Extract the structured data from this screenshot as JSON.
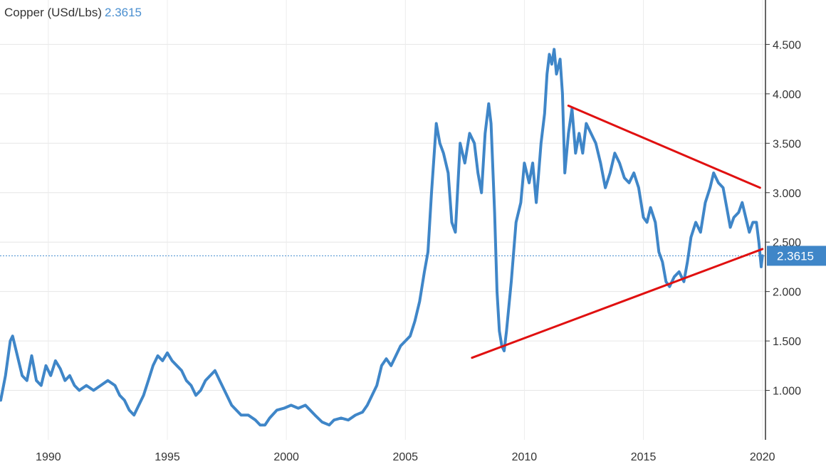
{
  "header": {
    "title": "Copper (USd/Lbs)",
    "last_value": "2.3615"
  },
  "chart_data": {
    "type": "line",
    "title": "Copper (USd/Lbs)",
    "xlabel": "",
    "ylabel": "",
    "x_unit": "year",
    "xlim": [
      1988,
      2020.1
    ],
    "ylim": [
      0.5,
      4.85
    ],
    "x_ticks": [
      "1990",
      "1995",
      "2000",
      "2005",
      "2010",
      "2015",
      "2020"
    ],
    "y_ticks": [
      "1.000",
      "1.500",
      "2.000",
      "2.500",
      "3.000",
      "3.500",
      "4.000",
      "4.500"
    ],
    "grid": true,
    "last_value": 2.3615,
    "last_value_label": "2.3615",
    "colors": {
      "series": "#3f86c8",
      "trendlines": "#e01010",
      "badge": "#3f86c8"
    },
    "series": [
      {
        "points": [
          [
            1988.0,
            0.9
          ],
          [
            1988.2,
            1.15
          ],
          [
            1988.4,
            1.5
          ],
          [
            1988.5,
            1.55
          ],
          [
            1988.7,
            1.35
          ],
          [
            1988.9,
            1.15
          ],
          [
            1989.1,
            1.1
          ],
          [
            1989.3,
            1.35
          ],
          [
            1989.5,
            1.1
          ],
          [
            1989.7,
            1.05
          ],
          [
            1989.9,
            1.25
          ],
          [
            1990.1,
            1.15
          ],
          [
            1990.3,
            1.3
          ],
          [
            1990.5,
            1.22
          ],
          [
            1990.7,
            1.1
          ],
          [
            1990.9,
            1.15
          ],
          [
            1991.1,
            1.05
          ],
          [
            1991.3,
            1.0
          ],
          [
            1991.6,
            1.05
          ],
          [
            1991.9,
            1.0
          ],
          [
            1992.2,
            1.05
          ],
          [
            1992.5,
            1.1
          ],
          [
            1992.8,
            1.05
          ],
          [
            1993.0,
            0.95
          ],
          [
            1993.2,
            0.9
          ],
          [
            1993.4,
            0.8
          ],
          [
            1993.6,
            0.75
          ],
          [
            1993.8,
            0.85
          ],
          [
            1994.0,
            0.95
          ],
          [
            1994.2,
            1.1
          ],
          [
            1994.4,
            1.25
          ],
          [
            1994.6,
            1.35
          ],
          [
            1994.8,
            1.3
          ],
          [
            1995.0,
            1.38
          ],
          [
            1995.2,
            1.3
          ],
          [
            1995.4,
            1.25
          ],
          [
            1995.6,
            1.2
          ],
          [
            1995.8,
            1.1
          ],
          [
            1996.0,
            1.05
          ],
          [
            1996.2,
            0.95
          ],
          [
            1996.4,
            1.0
          ],
          [
            1996.6,
            1.1
          ],
          [
            1996.8,
            1.15
          ],
          [
            1997.0,
            1.2
          ],
          [
            1997.2,
            1.1
          ],
          [
            1997.5,
            0.95
          ],
          [
            1997.7,
            0.85
          ],
          [
            1997.9,
            0.8
          ],
          [
            1998.1,
            0.75
          ],
          [
            1998.4,
            0.75
          ],
          [
            1998.7,
            0.7
          ],
          [
            1998.9,
            0.65
          ],
          [
            1999.1,
            0.65
          ],
          [
            1999.3,
            0.72
          ],
          [
            1999.6,
            0.8
          ],
          [
            1999.9,
            0.82
          ],
          [
            2000.2,
            0.85
          ],
          [
            2000.5,
            0.82
          ],
          [
            2000.8,
            0.85
          ],
          [
            2001.0,
            0.8
          ],
          [
            2001.2,
            0.75
          ],
          [
            2001.5,
            0.68
          ],
          [
            2001.8,
            0.65
          ],
          [
            2002.0,
            0.7
          ],
          [
            2002.3,
            0.72
          ],
          [
            2002.6,
            0.7
          ],
          [
            2002.9,
            0.75
          ],
          [
            2003.2,
            0.78
          ],
          [
            2003.4,
            0.85
          ],
          [
            2003.6,
            0.95
          ],
          [
            2003.8,
            1.05
          ],
          [
            2004.0,
            1.25
          ],
          [
            2004.2,
            1.32
          ],
          [
            2004.4,
            1.25
          ],
          [
            2004.6,
            1.35
          ],
          [
            2004.8,
            1.45
          ],
          [
            2005.0,
            1.5
          ],
          [
            2005.2,
            1.55
          ],
          [
            2005.4,
            1.7
          ],
          [
            2005.6,
            1.9
          ],
          [
            2005.8,
            2.2
          ],
          [
            2005.95,
            2.4
          ],
          [
            2006.1,
            3.0
          ],
          [
            2006.3,
            3.7
          ],
          [
            2006.45,
            3.5
          ],
          [
            2006.6,
            3.4
          ],
          [
            2006.8,
            3.2
          ],
          [
            2006.95,
            2.7
          ],
          [
            2007.1,
            2.6
          ],
          [
            2007.3,
            3.5
          ],
          [
            2007.5,
            3.3
          ],
          [
            2007.7,
            3.6
          ],
          [
            2007.9,
            3.5
          ],
          [
            2008.05,
            3.2
          ],
          [
            2008.2,
            3.0
          ],
          [
            2008.35,
            3.6
          ],
          [
            2008.5,
            3.9
          ],
          [
            2008.6,
            3.7
          ],
          [
            2008.75,
            2.8
          ],
          [
            2008.85,
            2.0
          ],
          [
            2008.95,
            1.6
          ],
          [
            2009.05,
            1.45
          ],
          [
            2009.15,
            1.4
          ],
          [
            2009.25,
            1.6
          ],
          [
            2009.45,
            2.1
          ],
          [
            2009.65,
            2.7
          ],
          [
            2009.85,
            2.9
          ],
          [
            2010.0,
            3.3
          ],
          [
            2010.2,
            3.1
          ],
          [
            2010.35,
            3.3
          ],
          [
            2010.5,
            2.9
          ],
          [
            2010.6,
            3.2
          ],
          [
            2010.7,
            3.5
          ],
          [
            2010.85,
            3.8
          ],
          [
            2010.95,
            4.2
          ],
          [
            2011.05,
            4.4
          ],
          [
            2011.15,
            4.3
          ],
          [
            2011.25,
            4.45
          ],
          [
            2011.35,
            4.2
          ],
          [
            2011.5,
            4.35
          ],
          [
            2011.6,
            4.0
          ],
          [
            2011.7,
            3.2
          ],
          [
            2011.85,
            3.6
          ],
          [
            2012.0,
            3.85
          ],
          [
            2012.15,
            3.4
          ],
          [
            2012.3,
            3.6
          ],
          [
            2012.45,
            3.4
          ],
          [
            2012.6,
            3.7
          ],
          [
            2012.8,
            3.6
          ],
          [
            2013.0,
            3.5
          ],
          [
            2013.2,
            3.3
          ],
          [
            2013.4,
            3.05
          ],
          [
            2013.6,
            3.2
          ],
          [
            2013.8,
            3.4
          ],
          [
            2014.0,
            3.3
          ],
          [
            2014.2,
            3.15
          ],
          [
            2014.4,
            3.1
          ],
          [
            2014.6,
            3.2
          ],
          [
            2014.8,
            3.05
          ],
          [
            2015.0,
            2.75
          ],
          [
            2015.15,
            2.7
          ],
          [
            2015.3,
            2.85
          ],
          [
            2015.5,
            2.7
          ],
          [
            2015.65,
            2.4
          ],
          [
            2015.8,
            2.3
          ],
          [
            2015.95,
            2.1
          ],
          [
            2016.1,
            2.05
          ],
          [
            2016.3,
            2.15
          ],
          [
            2016.5,
            2.2
          ],
          [
            2016.7,
            2.1
          ],
          [
            2016.85,
            2.3
          ],
          [
            2017.0,
            2.55
          ],
          [
            2017.2,
            2.7
          ],
          [
            2017.4,
            2.6
          ],
          [
            2017.6,
            2.9
          ],
          [
            2017.8,
            3.05
          ],
          [
            2017.95,
            3.2
          ],
          [
            2018.15,
            3.1
          ],
          [
            2018.35,
            3.05
          ],
          [
            2018.5,
            2.85
          ],
          [
            2018.65,
            2.65
          ],
          [
            2018.8,
            2.75
          ],
          [
            2019.0,
            2.8
          ],
          [
            2019.15,
            2.9
          ],
          [
            2019.3,
            2.75
          ],
          [
            2019.45,
            2.6
          ],
          [
            2019.6,
            2.7
          ],
          [
            2019.75,
            2.7
          ],
          [
            2019.85,
            2.5
          ],
          [
            2019.95,
            2.25
          ],
          [
            2020.0,
            2.3615
          ]
        ]
      }
    ],
    "trendlines": [
      {
        "from": [
          2011.85,
          3.88
        ],
        "to": [
          2019.9,
          3.05
        ]
      },
      {
        "from": [
          2007.8,
          1.33
        ],
        "to": [
          2020.0,
          2.43
        ]
      }
    ]
  }
}
